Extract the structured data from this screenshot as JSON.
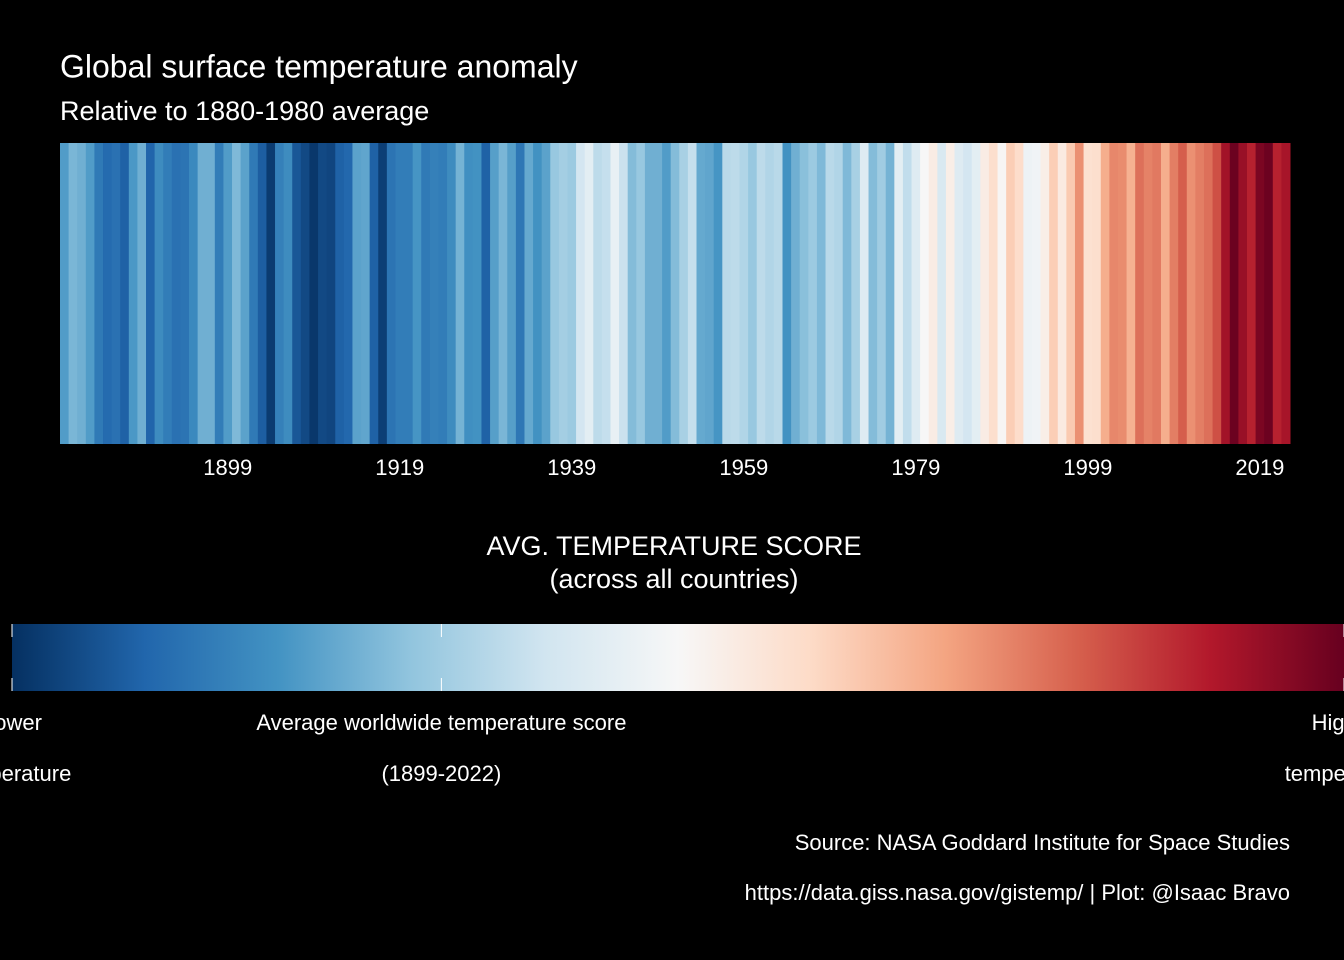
{
  "chart_data": {
    "type": "stripes",
    "title": "Global surface temperature anomaly",
    "subtitle": "Relative to 1880-1980 average",
    "x": [
      1880,
      1881,
      1882,
      1883,
      1884,
      1885,
      1886,
      1887,
      1888,
      1889,
      1890,
      1891,
      1892,
      1893,
      1894,
      1895,
      1896,
      1897,
      1898,
      1899,
      1900,
      1901,
      1902,
      1903,
      1904,
      1905,
      1906,
      1907,
      1908,
      1909,
      1910,
      1911,
      1912,
      1913,
      1914,
      1915,
      1916,
      1917,
      1918,
      1919,
      1920,
      1921,
      1922,
      1923,
      1924,
      1925,
      1926,
      1927,
      1928,
      1929,
      1930,
      1931,
      1932,
      1933,
      1934,
      1935,
      1936,
      1937,
      1938,
      1939,
      1940,
      1941,
      1942,
      1943,
      1944,
      1945,
      1946,
      1947,
      1948,
      1949,
      1950,
      1951,
      1952,
      1953,
      1954,
      1955,
      1956,
      1957,
      1958,
      1959,
      1960,
      1961,
      1962,
      1963,
      1964,
      1965,
      1966,
      1967,
      1968,
      1969,
      1970,
      1971,
      1972,
      1973,
      1974,
      1975,
      1976,
      1977,
      1978,
      1979,
      1980,
      1981,
      1982,
      1983,
      1984,
      1985,
      1986,
      1987,
      1988,
      1989,
      1990,
      1991,
      1992,
      1993,
      1994,
      1995,
      1996,
      1997,
      1998,
      1999,
      2000,
      2001,
      2002,
      2003,
      2004,
      2005,
      2006,
      2007,
      2008,
      2009,
      2010,
      2011,
      2012,
      2013,
      2014,
      2015,
      2016,
      2017,
      2018,
      2019,
      2020,
      2021,
      2022
    ],
    "values": [
      -0.17,
      -0.09,
      -0.11,
      -0.17,
      -0.28,
      -0.33,
      -0.31,
      -0.36,
      -0.18,
      -0.11,
      -0.35,
      -0.22,
      -0.27,
      -0.31,
      -0.3,
      -0.23,
      -0.11,
      -0.11,
      -0.27,
      -0.17,
      -0.08,
      -0.15,
      -0.28,
      -0.37,
      -0.47,
      -0.26,
      -0.22,
      -0.39,
      -0.43,
      -0.48,
      -0.43,
      -0.44,
      -0.36,
      -0.34,
      -0.15,
      -0.14,
      -0.36,
      -0.46,
      -0.3,
      -0.27,
      -0.27,
      -0.19,
      -0.28,
      -0.26,
      -0.27,
      -0.22,
      -0.1,
      -0.21,
      -0.2,
      -0.36,
      -0.16,
      -0.09,
      -0.16,
      -0.29,
      -0.13,
      -0.2,
      -0.15,
      -0.03,
      0.0,
      -0.02,
      0.12,
      0.18,
      0.06,
      0.08,
      0.2,
      0.09,
      -0.07,
      -0.03,
      -0.11,
      -0.11,
      -0.17,
      -0.07,
      0.01,
      0.08,
      -0.13,
      -0.14,
      -0.19,
      0.05,
      0.06,
      0.03,
      -0.03,
      0.06,
      0.03,
      0.05,
      -0.2,
      -0.11,
      -0.06,
      -0.02,
      -0.08,
      0.05,
      0.03,
      -0.08,
      0.01,
      0.16,
      -0.07,
      -0.01,
      -0.1,
      0.18,
      0.07,
      0.16,
      0.26,
      0.32,
      0.14,
      0.31,
      0.16,
      0.12,
      0.18,
      0.32,
      0.39,
      0.27,
      0.45,
      0.4,
      0.22,
      0.23,
      0.31,
      0.45,
      0.33,
      0.46,
      0.61,
      0.38,
      0.39,
      0.54,
      0.63,
      0.62,
      0.53,
      0.68,
      0.64,
      0.66,
      0.54,
      0.65,
      0.72,
      0.61,
      0.65,
      0.68,
      0.75,
      0.9,
      1.01,
      0.92,
      0.85,
      0.98,
      1.01,
      0.85,
      0.89
    ],
    "xlim": [
      1879.5,
      2022.5
    ],
    "xticks": [
      1899,
      1919,
      1939,
      1959,
      1979,
      1999,
      2019
    ],
    "color_scale": {
      "colors": [
        "#053061",
        "#2166ac",
        "#4393c3",
        "#92c5de",
        "#d1e5f0",
        "#f7f7f7",
        "#fddbc7",
        "#f4a582",
        "#d6604d",
        "#b2182b",
        "#67001f"
      ],
      "limits": [
        -0.5,
        1.02
      ]
    },
    "legend": {
      "title": "AVG. TEMPERATURE SCORE\n(across all countries)",
      "ticks": [
        {
          "value": -0.5,
          "label": "Lower\ntemperature"
        },
        {
          "value": -0.01,
          "label": "Average worldwide temperature score\n(1899-2022)"
        },
        {
          "value": 1.02,
          "label": "Higher\ntemperature"
        }
      ]
    },
    "caption": [
      "Source: NASA Goddard Institute for Space Studies",
      "https://data.giss.nasa.gov/gistemp/ | Plot: @Isaac Bravo"
    ]
  }
}
